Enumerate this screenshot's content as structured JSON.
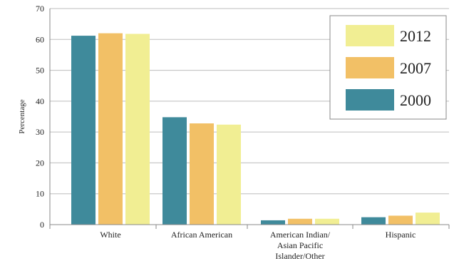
{
  "chart_data": {
    "type": "bar",
    "ylabel": "Percentage",
    "xlabel": "",
    "ylim": [
      0,
      70
    ],
    "yticks": [
      0,
      10,
      20,
      30,
      40,
      50,
      60,
      70
    ],
    "grid": true,
    "legend_position": "top-right",
    "categories": [
      [
        "White"
      ],
      [
        "African American"
      ],
      [
        "American Indian/",
        "Asian Pacific",
        "Islander/Other"
      ],
      [
        "Hispanic"
      ]
    ],
    "series": [
      {
        "name": "2000",
        "color": "#3f8a9b",
        "values": [
          61.2,
          34.8,
          1.4,
          2.4
        ]
      },
      {
        "name": "2007",
        "color": "#f2c066",
        "values": [
          62.0,
          32.8,
          1.9,
          2.9
        ]
      },
      {
        "name": "2012",
        "color": "#f1ee93",
        "values": [
          61.8,
          32.4,
          1.9,
          3.9
        ]
      }
    ],
    "legend_order": [
      "2012",
      "2007",
      "2000"
    ]
  }
}
